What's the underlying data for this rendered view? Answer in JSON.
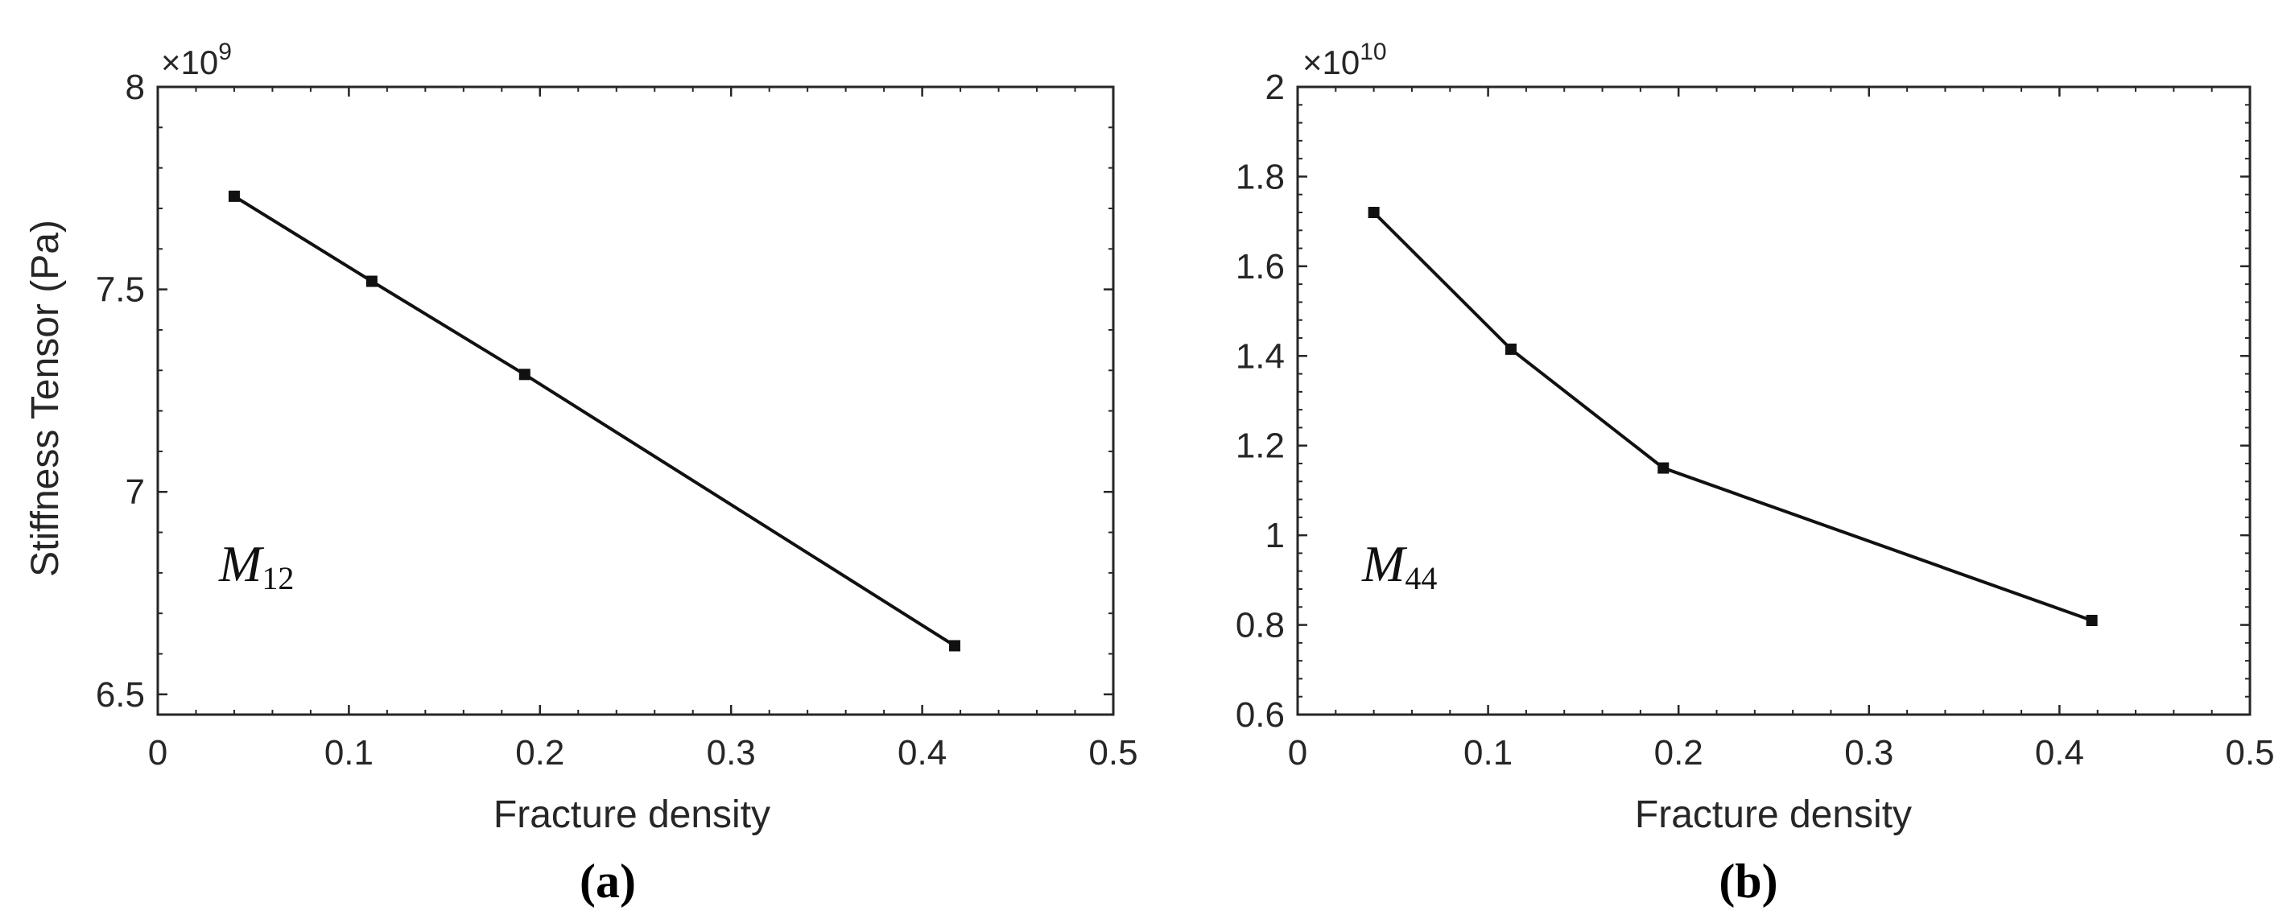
{
  "chart_data": [
    {
      "type": "line",
      "panel_label": "(a)",
      "title": "",
      "xlabel": "Fracture density",
      "ylabel": "Stiffness Tensor (Pa)",
      "exponent_base": "×10",
      "exponent_power": "9",
      "annotation_main": "M",
      "annotation_sub": "12",
      "xlim": [
        0,
        0.5
      ],
      "ylim": [
        6.45,
        8
      ],
      "x_ticks": [
        0,
        0.1,
        0.2,
        0.3,
        0.4,
        0.5
      ],
      "x_tick_labels": [
        "0",
        "0.1",
        "0.2",
        "0.3",
        "0.4",
        "0.5"
      ],
      "y_ticks": [
        6.5,
        7,
        7.5,
        8
      ],
      "y_tick_labels": [
        "6.5",
        "7",
        "7.5",
        "8"
      ],
      "grid": false,
      "series": [
        {
          "x": [
            0.04,
            0.112,
            0.192,
            0.417
          ],
          "y": [
            7.73,
            7.52,
            7.29,
            6.62
          ]
        }
      ]
    },
    {
      "type": "line",
      "panel_label": "(b)",
      "title": "",
      "xlabel": "Fracture density",
      "ylabel": "",
      "exponent_base": "×10",
      "exponent_power": "10",
      "annotation_main": "M",
      "annotation_sub": "44",
      "xlim": [
        0,
        0.5
      ],
      "ylim": [
        0.6,
        2
      ],
      "x_ticks": [
        0,
        0.1,
        0.2,
        0.3,
        0.4,
        0.5
      ],
      "x_tick_labels": [
        "0",
        "0.1",
        "0.2",
        "0.3",
        "0.4",
        "0.5"
      ],
      "y_ticks": [
        0.6,
        0.8,
        1,
        1.2,
        1.4,
        1.6,
        1.8,
        2
      ],
      "y_tick_labels": [
        "0.6",
        "0.8",
        "1",
        "1.2",
        "1.4",
        "1.6",
        "1.8",
        "2"
      ],
      "grid": false,
      "series": [
        {
          "x": [
            0.04,
            0.112,
            0.192,
            0.417
          ],
          "y": [
            1.72,
            1.415,
            1.15,
            0.81
          ]
        }
      ]
    }
  ]
}
